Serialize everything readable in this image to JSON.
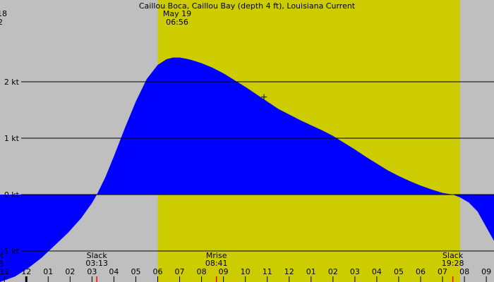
{
  "chart_data": {
    "type": "area",
    "title": "Caillou Boca, Caillou Bay (depth 4 ft), Louisiana Current",
    "date_label": "May 19",
    "time_label": "06:56",
    "corner_top": [
      "18",
      "2"
    ],
    "corner_bottom": [
      "t",
      "8"
    ],
    "ylabel_unit": "kt",
    "y_ticks": [
      {
        "value": 2,
        "label": "2 kt"
      },
      {
        "value": 1,
        "label": "1 kt"
      },
      {
        "value": 0,
        "label": "0 kt"
      },
      {
        "value": -1,
        "label": "-1 kt"
      }
    ],
    "ylim": [
      -1.55,
      3.45
    ],
    "x_unit": "hours",
    "xlim": [
      -7.2,
      15.35
    ],
    "x_ticks": [
      {
        "hour": -7,
        "label": "11"
      },
      {
        "hour": -6,
        "label": "12"
      },
      {
        "hour": -5,
        "label": "01"
      },
      {
        "hour": -4,
        "label": "02"
      },
      {
        "hour": -3,
        "label": "03"
      },
      {
        "hour": -2,
        "label": "04"
      },
      {
        "hour": -1,
        "label": "05"
      },
      {
        "hour": 0,
        "label": "06"
      },
      {
        "hour": 1,
        "label": "07"
      },
      {
        "hour": 2,
        "label": "08"
      },
      {
        "hour": 3,
        "label": "09"
      },
      {
        "hour": 4,
        "label": "10"
      },
      {
        "hour": 5,
        "label": "11"
      },
      {
        "hour": 6,
        "label": "12"
      },
      {
        "hour": 7,
        "label": "01"
      },
      {
        "hour": 8,
        "label": "02"
      },
      {
        "hour": 9,
        "label": "03"
      },
      {
        "hour": 10,
        "label": "04"
      },
      {
        "hour": 11,
        "label": "05"
      },
      {
        "hour": 12,
        "label": "06"
      },
      {
        "hour": 13,
        "label": "07"
      },
      {
        "hour": 14,
        "label": "08"
      },
      {
        "hour": 15,
        "label": "09"
      }
    ],
    "midnight_hour": -6,
    "daylight_span": [
      0.0,
      13.8
    ],
    "events": [
      {
        "name": "Slack",
        "time": "03:13",
        "hour": -2.78,
        "marker": true
      },
      {
        "name": "Mrise",
        "time": "08:41",
        "hour": 2.68,
        "marker": true
      },
      {
        "name": "Slack",
        "time": "19:28",
        "hour": 13.47,
        "marker": true
      }
    ],
    "current_marker": {
      "hour": 4.85,
      "value": 1.73
    },
    "series": [
      {
        "x": [
          -7.2,
          -6.5,
          -5.9,
          -5.3,
          -4.7,
          -4.1,
          -3.5,
          -3.0,
          -2.78,
          -2.4,
          -2.0,
          -1.5,
          -1.0,
          -0.5,
          0.0,
          0.4,
          0.7,
          1.0,
          1.3,
          1.6,
          2.0,
          2.5,
          3.0,
          3.5,
          4.0,
          4.5,
          5.0,
          5.5,
          6.0,
          6.5,
          7.0,
          7.5,
          8.0,
          8.5,
          9.0,
          9.5,
          10.0,
          10.5,
          11.0,
          11.5,
          12.0,
          12.5,
          13.0,
          13.47,
          13.8,
          14.2,
          14.6,
          15.0,
          15.35
        ],
        "y": [
          -1.55,
          -1.45,
          -1.3,
          -1.12,
          -0.9,
          -0.68,
          -0.42,
          -0.15,
          0.0,
          0.3,
          0.68,
          1.18,
          1.65,
          2.05,
          2.3,
          2.4,
          2.43,
          2.43,
          2.41,
          2.38,
          2.33,
          2.25,
          2.15,
          2.03,
          1.91,
          1.78,
          1.65,
          1.52,
          1.42,
          1.32,
          1.23,
          1.14,
          1.04,
          0.92,
          0.8,
          0.67,
          0.55,
          0.43,
          0.33,
          0.24,
          0.16,
          0.09,
          0.03,
          0.0,
          -0.05,
          -0.14,
          -0.3,
          -0.58,
          -0.82
        ]
      }
    ],
    "colors": {
      "background": "#bfbfbf",
      "daylight": "#cccc00",
      "flood": "#0000ff",
      "ebb": "#2e8b57",
      "event_marker": "#ff0000",
      "midnight_marker": "#000000"
    },
    "grid": true
  }
}
